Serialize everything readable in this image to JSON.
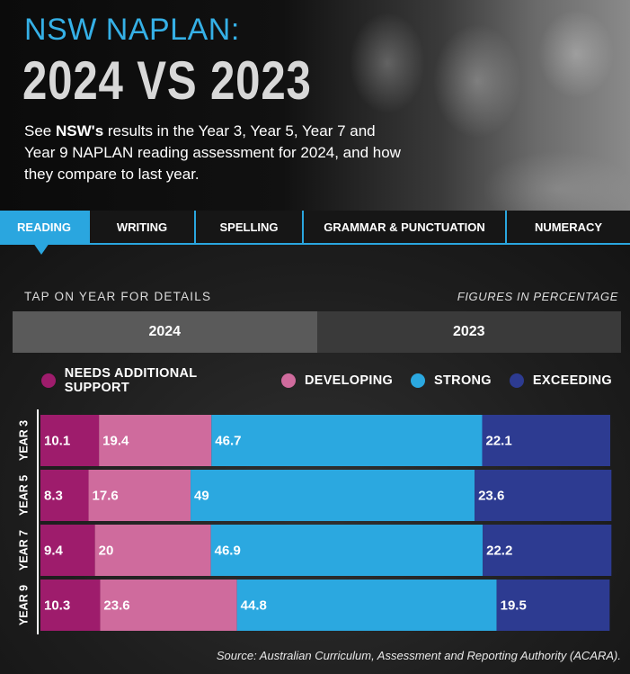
{
  "header": {
    "kicker": "NSW NAPLAN:",
    "headline": "2024 VS 2023",
    "intro_prefix": "See ",
    "intro_bold": "NSW's",
    "intro_rest": " results in the Year 3, Year 5, Year 7 and Year 9 NAPLAN reading assessment for 2024, and how they compare to last year."
  },
  "tabs": [
    {
      "label": "READING",
      "active": true
    },
    {
      "label": "WRITING",
      "active": false
    },
    {
      "label": "SPELLING",
      "active": false
    },
    {
      "label": "GRAMMAR & PUNCTUATION",
      "active": false
    },
    {
      "label": "NUMERACY",
      "active": false
    }
  ],
  "notes": {
    "tap": "TAP ON YEAR FOR DETAILS",
    "figures": "FIGURES IN PERCENTAGE"
  },
  "year_buttons": [
    {
      "label": "2024",
      "active": true
    },
    {
      "label": "2023",
      "active": false
    }
  ],
  "chart_data": {
    "type": "bar",
    "orientation": "horizontal-stacked",
    "categories": [
      "YEAR 3",
      "YEAR 5",
      "YEAR 7",
      "YEAR 9"
    ],
    "series": [
      {
        "name": "NEEDS ADDITIONAL SUPPORT",
        "color": "#9e1c6c",
        "values": [
          10.1,
          8.3,
          9.4,
          10.3
        ]
      },
      {
        "name": "DEVELOPING",
        "color": "#cf6b9d",
        "values": [
          19.4,
          17.6,
          20,
          23.6
        ]
      },
      {
        "name": "STRONG",
        "color": "#2ba8e0",
        "values": [
          46.7,
          49,
          46.9,
          44.8
        ]
      },
      {
        "name": "EXCEEDING",
        "color": "#2d3b91",
        "values": [
          22.1,
          23.6,
          22.2,
          19.5
        ]
      }
    ],
    "xlim": [
      0,
      100
    ],
    "legend": "top",
    "grid": false
  },
  "source": "Source: Australian Curriculum, Assessment and Reporting Authority (ACARA)."
}
